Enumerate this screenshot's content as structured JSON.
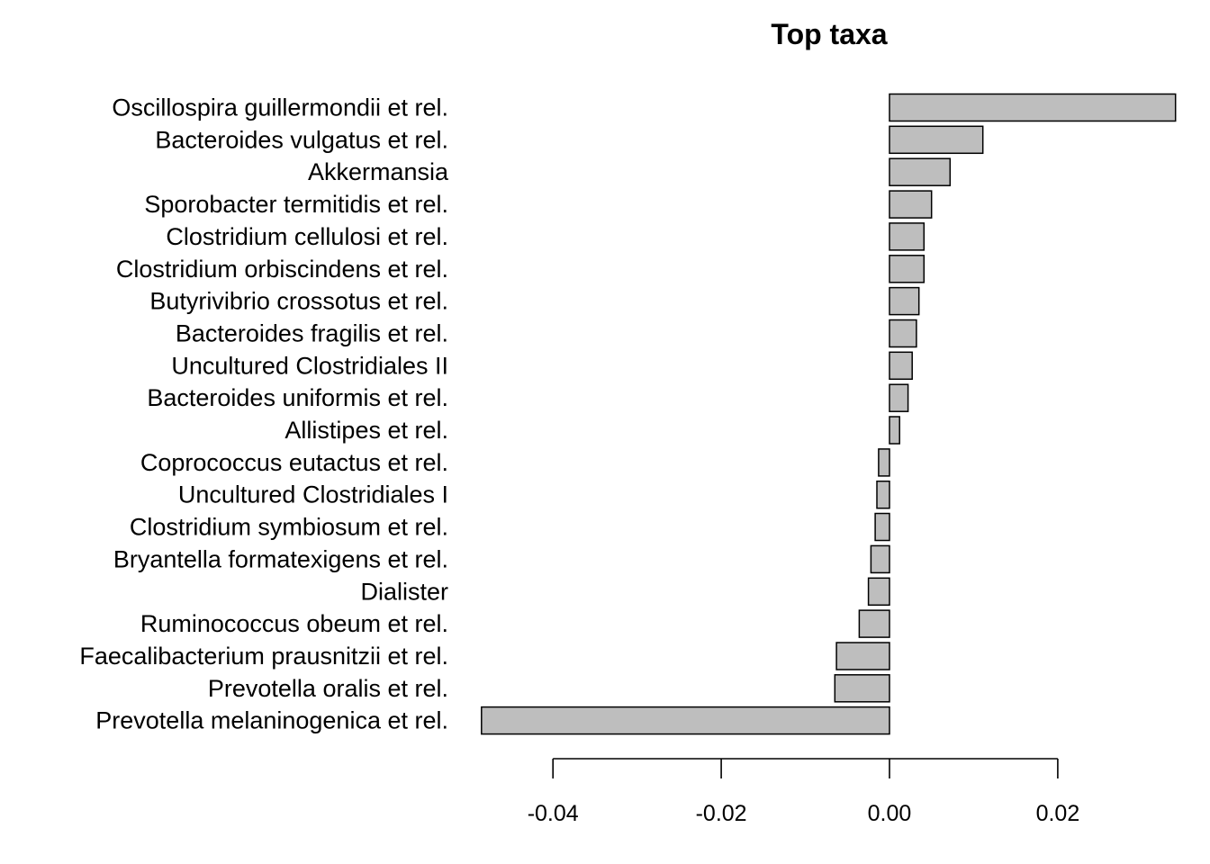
{
  "chart_data": {
    "type": "bar",
    "orientation": "horizontal",
    "title": "Top taxa",
    "xlabel": "",
    "ylabel": "",
    "xlim": [
      -0.0485,
      0.034
    ],
    "xticks": [
      -0.04,
      -0.02,
      0.0,
      0.02
    ],
    "xtick_labels": [
      "-0.04",
      "-0.02",
      "0.00",
      "0.02"
    ],
    "bar_color": "#bebebe",
    "categories": [
      "Oscillospira guillermondii et rel.",
      "Bacteroides vulgatus et rel.",
      "Akkermansia",
      "Sporobacter termitidis et rel.",
      "Clostridium cellulosi et rel.",
      "Clostridium orbiscindens et rel.",
      "Butyrivibrio crossotus et rel.",
      "Bacteroides fragilis et rel.",
      "Uncultured Clostridiales II",
      "Bacteroides uniformis et rel.",
      "Allistipes et rel.",
      "Coprococcus eutactus et rel.",
      "Uncultured Clostridiales I",
      "Clostridium symbiosum et rel.",
      "Bryantella formatexigens et rel.",
      "Dialister",
      "Ruminococcus obeum et rel.",
      "Faecalibacterium prausnitzii et rel.",
      "Prevotella oralis et rel.",
      "Prevotella melaninogenica et rel."
    ],
    "values": [
      0.034,
      0.0111,
      0.0072,
      0.005,
      0.0041,
      0.0041,
      0.0035,
      0.0032,
      0.0027,
      0.0022,
      0.0012,
      -0.0013,
      -0.0015,
      -0.0017,
      -0.0022,
      -0.0025,
      -0.0036,
      -0.0063,
      -0.0065,
      -0.0485
    ]
  }
}
